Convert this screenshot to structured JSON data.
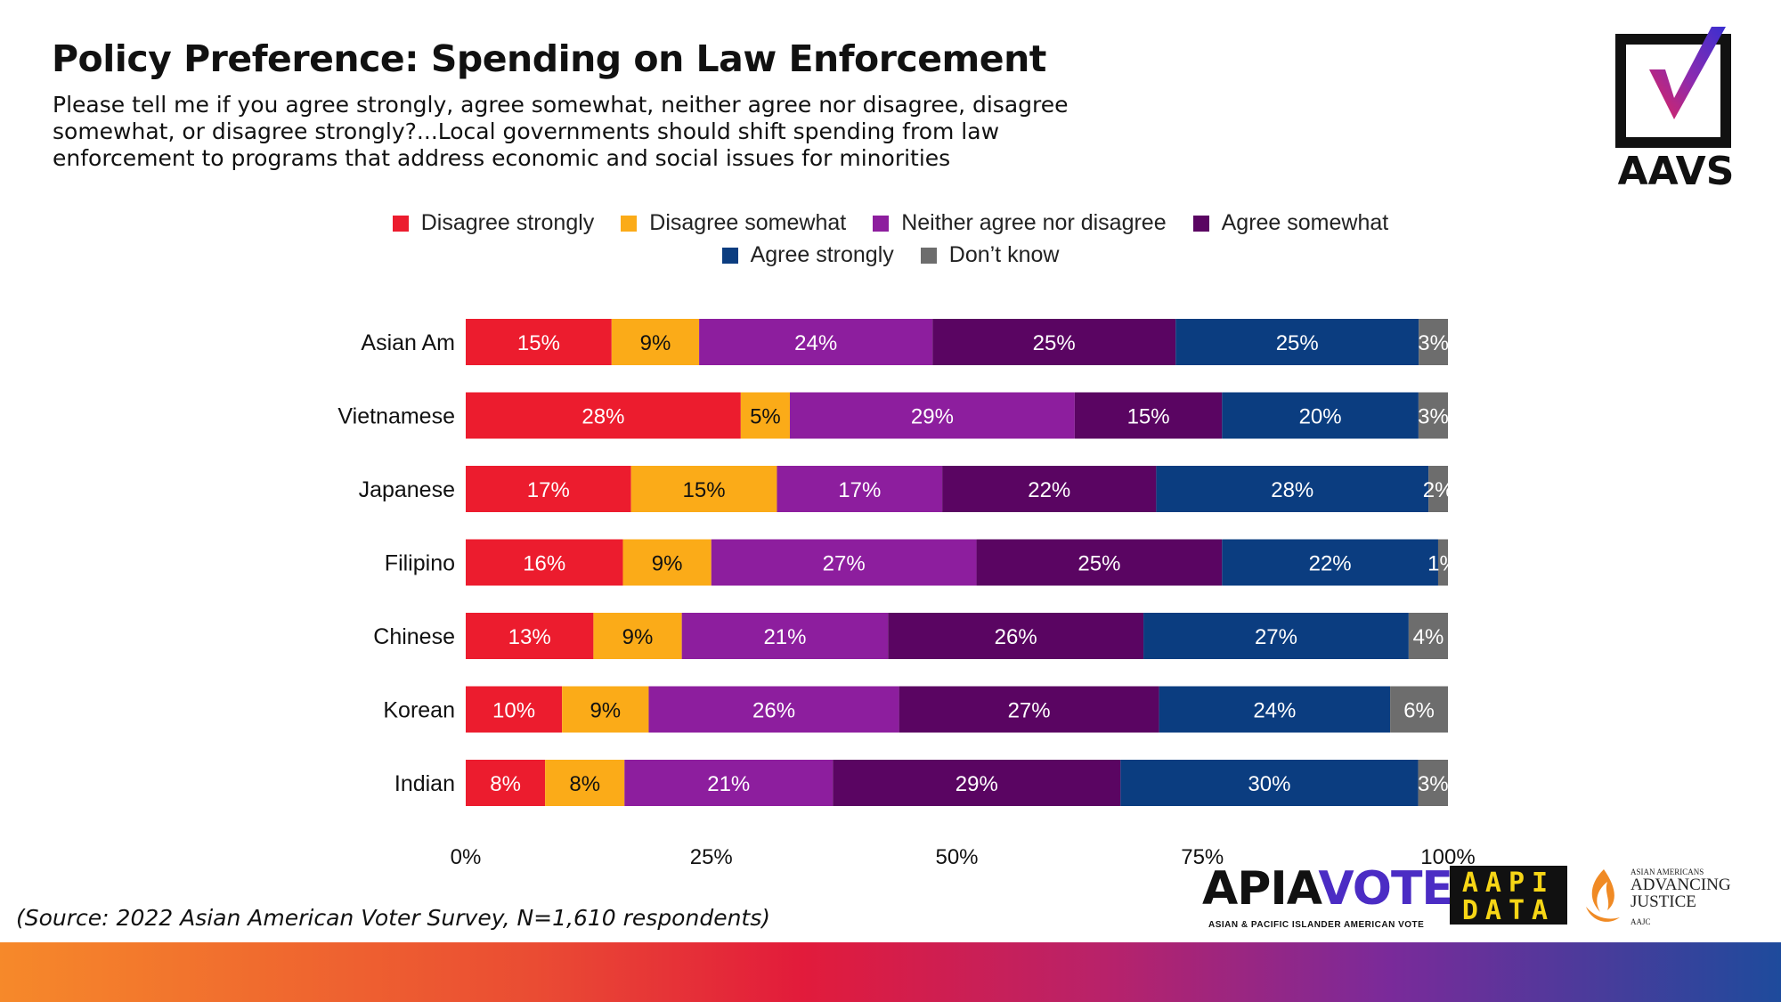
{
  "title": "Policy Preference: Spending on Law Enforcement",
  "subtitle": "Please tell me if you agree strongly, agree somewhat, neither agree nor disagree, disagree somewhat, or disagree strongly?...Local governments should shift spending from law enforcement to programs that address economic and social issues for minorities",
  "source": "(Source: 2022 Asian American Voter Survey, N=1,610 respondents)",
  "logos": {
    "aavs": "AAVS",
    "apia_a": "APIA",
    "apia_b": "VOTE",
    "apia_sub": "ASIAN & PACIFIC ISLANDER AMERICAN VOTE",
    "aapi_top": "AAPI",
    "aapi_bottom": "DATA",
    "aajc_small": "ASIAN AMERICANS",
    "aajc_line1": "ADVANCING",
    "aajc_line2": "JUSTICE",
    "aajc_tiny": "AAJC"
  },
  "chart_data": {
    "type": "bar",
    "orientation": "horizontal",
    "stacked": true,
    "categories": [
      "Asian Am",
      "Vietnamese",
      "Japanese",
      "Filipino",
      "Chinese",
      "Korean",
      "Indian"
    ],
    "series": [
      {
        "name": "Disagree strongly",
        "color": "#ec1c2e",
        "values": [
          15,
          28,
          17,
          16,
          13,
          10,
          8
        ]
      },
      {
        "name": "Disagree somewhat",
        "color": "#fbab18",
        "values": [
          9,
          5,
          15,
          9,
          9,
          9,
          8
        ]
      },
      {
        "name": "Neither agree nor disagree",
        "color": "#8d1e9e",
        "values": [
          24,
          29,
          17,
          27,
          21,
          26,
          21
        ]
      },
      {
        "name": "Agree somewhat",
        "color": "#5a0562",
        "values": [
          25,
          15,
          22,
          25,
          26,
          27,
          29
        ]
      },
      {
        "name": "Agree strongly",
        "color": "#0b3d80",
        "values": [
          25,
          20,
          28,
          22,
          27,
          24,
          30
        ]
      },
      {
        "name": "Don’t know",
        "color": "#6d6d6d",
        "values": [
          3,
          3,
          2,
          1,
          4,
          6,
          3
        ]
      }
    ],
    "xticks": [
      "0%",
      "25%",
      "50%",
      "75%",
      "100%"
    ],
    "xlim": [
      0,
      100
    ],
    "legend_position": "top",
    "grid": false
  }
}
